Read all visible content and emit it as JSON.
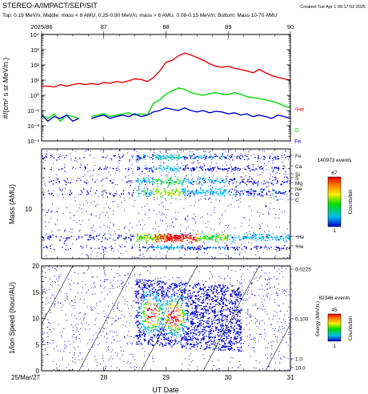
{
  "header": {
    "title": "STEREO-A/IMPACT/SEP/SIT",
    "created": "Created-Tue Apr  1 09:17:52 2025",
    "subtitle": "Top: 0.19 MeV/n; Middle: mass < 8 AMU, 0.25-0.90 MeV/n; mass > 8 AMU, 0.08-0.15 MeV/n; Bottom: Mass 10-70 AMU"
  },
  "colors": {
    "he4": "#ee0000",
    "o": "#00dd00",
    "fe": "#0000cc",
    "colormap": [
      "#0000cc",
      "#00bbee",
      "#00dd00",
      "#ffee00",
      "#ff8800",
      "#ee0000"
    ]
  },
  "chart_data": [
    {
      "type": "line",
      "panel": "top",
      "doy_axis": {
        "ticks": [
          "2025/86",
          "87",
          "88",
          "89",
          "90"
        ]
      },
      "ylabel": "#/(cm² s sr MeV/n.)",
      "ylim": [
        0.001,
        10000
      ],
      "yscale": "log",
      "y_ticks": [
        "10⁻³",
        "10⁻²",
        "10⁻¹",
        "10⁰",
        "10¹",
        "10²",
        "10³",
        "10⁴"
      ],
      "x_range_day": [
        86,
        90
      ],
      "series": [
        {
          "name": "⁴He",
          "color": "#ee0000",
          "x": [
            86.0,
            86.1,
            86.2,
            86.3,
            86.4,
            86.5,
            86.6,
            86.7,
            86.8,
            86.9,
            87.0,
            87.1,
            87.2,
            87.3,
            87.4,
            87.5,
            87.6,
            87.7,
            87.8,
            87.9,
            88.0,
            88.1,
            88.2,
            88.3,
            88.4,
            88.5,
            88.6,
            88.7,
            88.8,
            88.9,
            89.0,
            89.1,
            89.2,
            89.3,
            89.4,
            89.5,
            89.6,
            89.7,
            89.8,
            89.9,
            90.0
          ],
          "y": [
            4,
            4,
            3.5,
            5,
            4,
            5,
            6,
            5,
            6,
            5,
            7,
            6,
            8,
            7,
            9,
            12,
            11,
            8,
            15,
            40,
            150,
            200,
            400,
            600,
            450,
            300,
            200,
            120,
            80,
            70,
            80,
            60,
            50,
            40,
            30,
            50,
            30,
            20,
            15,
            12,
            10
          ]
        },
        {
          "name": "O",
          "color": "#00dd00",
          "x": [
            86.0,
            86.1,
            86.2,
            86.3,
            86.4,
            86.5,
            86.6,
            86.7,
            86.8,
            86.9,
            87.0,
            87.1,
            87.2,
            87.3,
            87.4,
            87.5,
            87.6,
            87.7,
            87.8,
            87.9,
            88.0,
            88.1,
            88.2,
            88.3,
            88.4,
            88.5,
            88.6,
            88.7,
            88.8,
            88.9,
            89.0,
            89.1,
            89.2,
            89.3,
            89.4,
            89.5,
            89.6,
            89.7,
            89.8,
            89.9,
            90.0
          ],
          "y": [
            0.05,
            0.03,
            0.06,
            0.02,
            0.05,
            0.04,
            0.03,
            null,
            0.04,
            0.05,
            0.06,
            0.04,
            0.05,
            0.06,
            0.07,
            0.05,
            0.06,
            0.05,
            0.3,
            0.5,
            1.2,
            2,
            3,
            2.5,
            1.5,
            1.2,
            1,
            1.3,
            1.5,
            1.2,
            1.1,
            1.5,
            1.2,
            0.8,
            0.7,
            0.6,
            0.5,
            0.4,
            0.3,
            0.2,
            0.15
          ]
        },
        {
          "name": "Fe",
          "color": "#0000cc",
          "x": [
            86.0,
            86.1,
            86.2,
            86.3,
            86.4,
            86.5,
            86.6,
            86.7,
            86.8,
            86.9,
            87.0,
            87.1,
            87.2,
            87.3,
            87.4,
            87.5,
            87.6,
            87.7,
            87.8,
            87.9,
            88.0,
            88.1,
            88.2,
            88.3,
            88.4,
            88.5,
            88.6,
            88.7,
            88.8,
            88.9,
            89.0,
            89.1,
            89.2,
            89.3,
            89.4,
            89.5,
            89.6,
            89.7,
            89.8,
            89.9,
            90.0
          ],
          "y": [
            0.05,
            0.02,
            0.04,
            0.03,
            0.05,
            0.02,
            0.03,
            null,
            0.03,
            0.04,
            0.05,
            0.03,
            0.04,
            0.05,
            0.04,
            0.06,
            0.04,
            0.05,
            0.08,
            0.1,
            0.15,
            0.12,
            0.1,
            0.15,
            0.1,
            0.08,
            0.1,
            0.07,
            0.09,
            0.08,
            0.06,
            0.07,
            0.05,
            0.06,
            0.04,
            0.05,
            0.04,
            0.03,
            0.05,
            0.04,
            0.03
          ]
        }
      ],
      "series_labels": [
        "⁴He",
        "O",
        "Fe"
      ]
    },
    {
      "type": "heatmap",
      "panel": "middle",
      "ylabel": "Mass (AMU)",
      "y_tick_labels": [
        "10"
      ],
      "species_labels": [
        "Fe",
        "Ca",
        "Si",
        "S",
        "Mg",
        "Ne",
        "O",
        "C",
        "⁴He",
        "³He"
      ],
      "count_label": "140973 events",
      "colorbar_label": "Counts/bin",
      "colorbar_max": "67",
      "colorbar_min": "1",
      "bands": [
        {
          "label": "⁴He",
          "intensity": 1.0
        },
        {
          "label": "O",
          "intensity": 0.6
        },
        {
          "label": "Fe",
          "intensity": 0.3
        }
      ]
    },
    {
      "type": "heatmap",
      "panel": "bottom",
      "xlabel": "UT Date",
      "ylabel": "1/Ion Speed (hour/AU)",
      "ylim": [
        0,
        20
      ],
      "y_ticks": [
        "0",
        "5",
        "10",
        "15",
        "20"
      ],
      "x_tick_labels": [
        "25/Mar/27",
        "28",
        "29",
        "30",
        "31"
      ],
      "x_range_day": [
        27,
        31
      ],
      "energy_label": "Energy (MeV/n.)",
      "energy_ticks": [
        "0.0225",
        "0.100",
        "1.0",
        "10.0"
      ],
      "count_label": "82346 events",
      "colorbar_label": "Counts/bin",
      "colorbar_max": "45",
      "colorbar_min": "1"
    }
  ]
}
